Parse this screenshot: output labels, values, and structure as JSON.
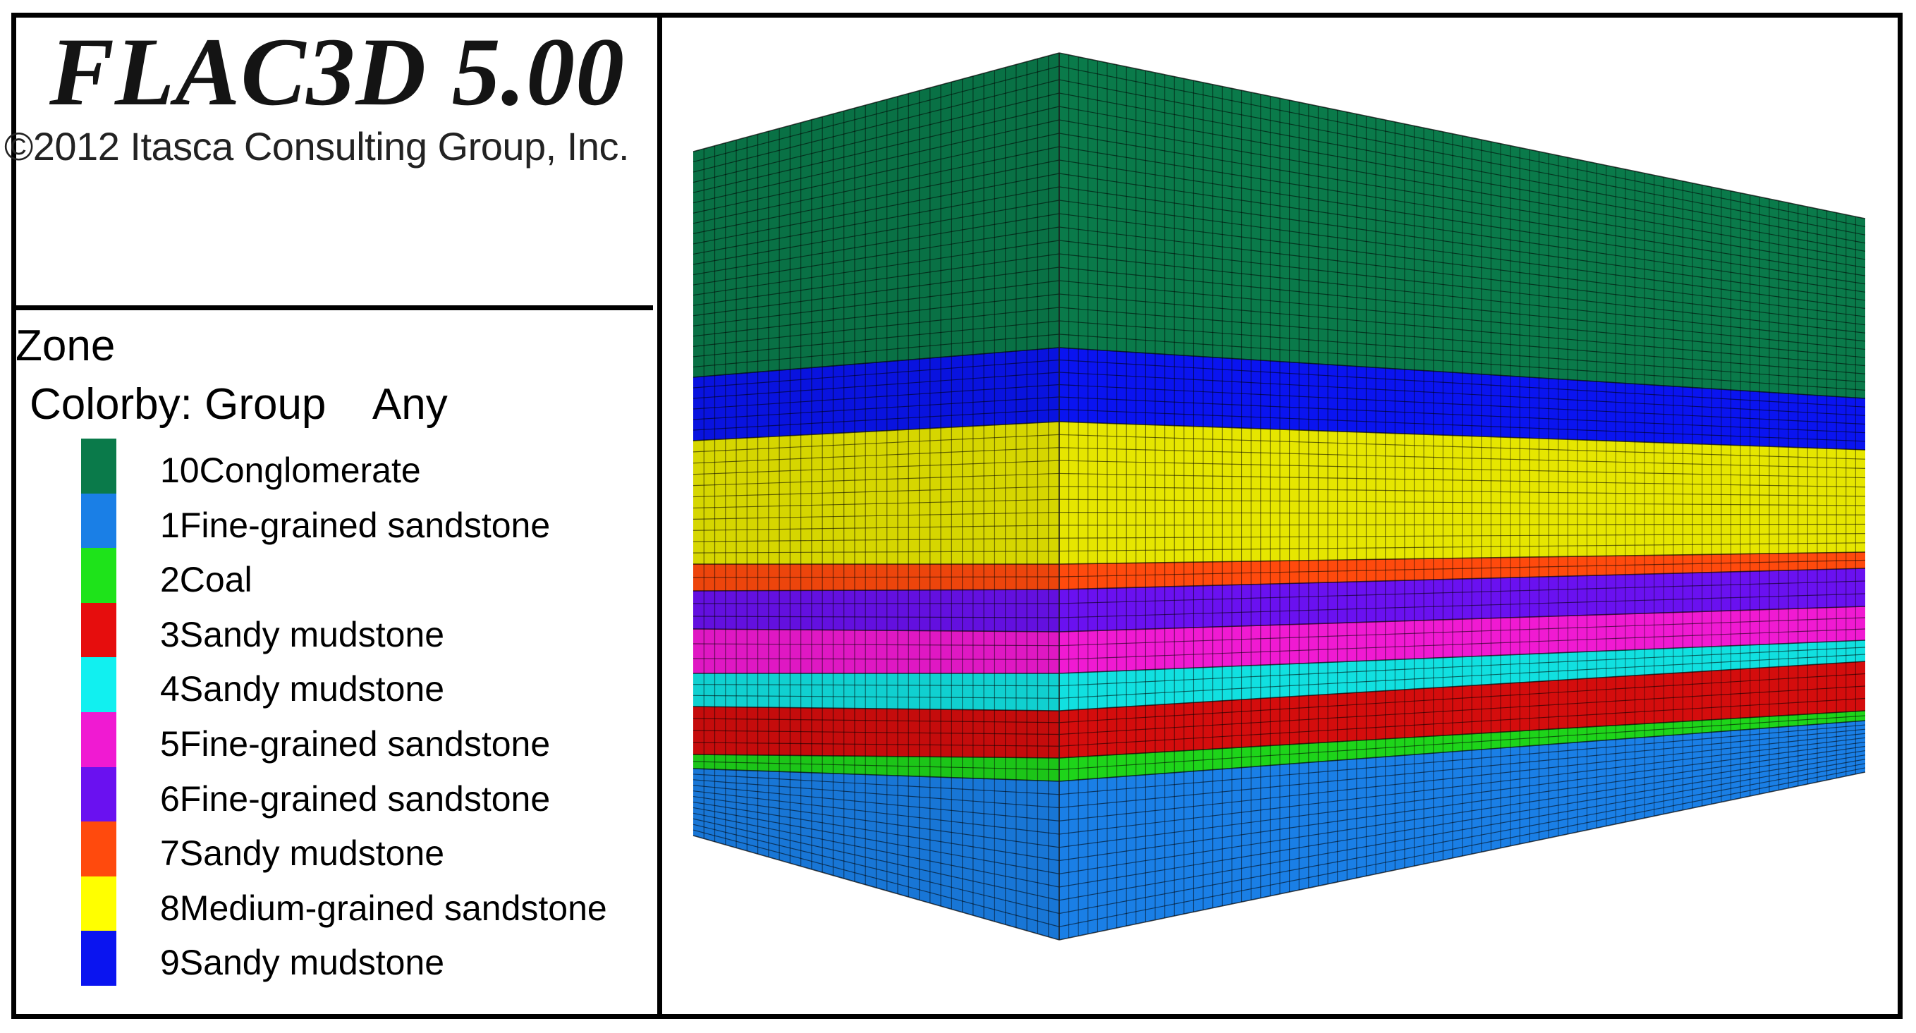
{
  "header": {
    "app_title": "FLAC3D 5.00",
    "copyright": "©2012 Itasca Consulting Group, Inc."
  },
  "legend": {
    "title": "Zone",
    "colorby_label": "Colorby: Group",
    "colorby_value": "Any",
    "items": [
      {
        "label": "10Conglomerate",
        "color": "#0a7a4a"
      },
      {
        "label": "1Fine-grained sandstone",
        "color": "#1a7fe6"
      },
      {
        "label": "2Coal",
        "color": "#1ee31a"
      },
      {
        "label": "3Sandy mudstone",
        "color": "#e60d0d"
      },
      {
        "label": "4Sandy mudstone",
        "color": "#11f0f0"
      },
      {
        "label": "5Fine-grained sandstone",
        "color": "#f01ad2"
      },
      {
        "label": "6Fine-grained sandstone",
        "color": "#6a11f0"
      },
      {
        "label": "7Sandy mudstone",
        "color": "#ff4a0d"
      },
      {
        "label": "8Medium-grained sandstone",
        "color": "#ffff00"
      },
      {
        "label": "9Sandy mudstone",
        "color": "#0a14f0"
      }
    ]
  },
  "model": {
    "layers_top_to_bottom": [
      {
        "group": "10Conglomerate",
        "color": "#0a7a4a"
      },
      {
        "group": "9Sandy mudstone",
        "color": "#0a14f0"
      },
      {
        "group": "8Medium-grained sandstone",
        "color": "#e6e600"
      },
      {
        "group": "7Sandy mudstone",
        "color": "#ff4a0d"
      },
      {
        "group": "6Fine-grained sandstone",
        "color": "#6a11f0"
      },
      {
        "group": "5Fine-grained sandstone",
        "color": "#f01ad2"
      },
      {
        "group": "4Sandy mudstone",
        "color": "#11e0e0"
      },
      {
        "group": "3Sandy mudstone",
        "color": "#d40d0d"
      },
      {
        "group": "2Coal",
        "color": "#1ed41a"
      },
      {
        "group": "1Fine-grained sandstone",
        "color": "#1a7fe6"
      }
    ]
  }
}
